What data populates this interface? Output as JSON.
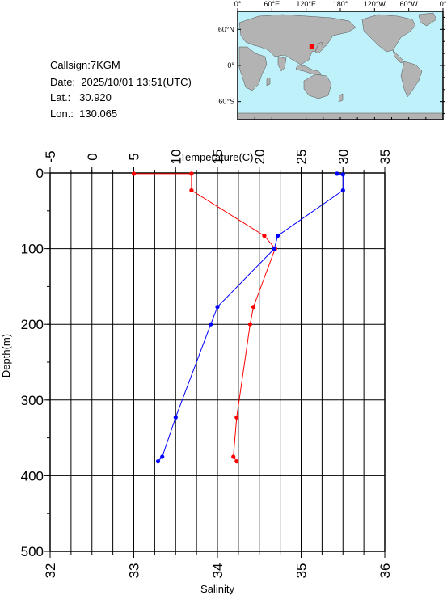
{
  "info": {
    "callsign": "Callsign:7KGM",
    "date": "Date:  2025/10/01 13:51(UTC)",
    "lat": "Lat.:   30.920",
    "lon": "Lon.:  130.065"
  },
  "map": {
    "top_labels": [
      "0°",
      "60°E",
      "120°E",
      "180°",
      "120°W",
      "60°W",
      "0°"
    ],
    "left_labels": [
      "60°N",
      "0°",
      "60°S"
    ],
    "marker_lat": 30.92,
    "marker_lon": 130.065,
    "colors": {
      "ocean": "#bff1fa",
      "land": "#b3b3b3",
      "marker": "#ff0000"
    }
  },
  "chart_data": {
    "type": "line",
    "ylabel": "Depth(m)",
    "xlabel_top": "Temperature(C)",
    "xlabel_bottom": "Salinity",
    "ylim": [
      0,
      500
    ],
    "yticks": [
      0,
      100,
      200,
      300,
      400,
      500
    ],
    "temperature_axis": {
      "range": [
        -5,
        35
      ],
      "ticks": [
        -5,
        0,
        5,
        10,
        15,
        20,
        25,
        30,
        35
      ]
    },
    "salinity_axis": {
      "range": [
        32,
        36
      ],
      "ticks": [
        32,
        33,
        34,
        35,
        36
      ]
    },
    "grid": true,
    "series": [
      {
        "color": "#ff0000",
        "axis": "salinity",
        "points": [
          {
            "x": 33.0,
            "depth": 1
          },
          {
            "x": 33.69,
            "depth": 1
          },
          {
            "x": 33.69,
            "depth": 23
          },
          {
            "x": 34.56,
            "depth": 83
          },
          {
            "x": 34.69,
            "depth": 100
          },
          {
            "x": 34.43,
            "depth": 177
          },
          {
            "x": 34.39,
            "depth": 200
          },
          {
            "x": 34.23,
            "depth": 323
          },
          {
            "x": 34.19,
            "depth": 375
          },
          {
            "x": 34.23,
            "depth": 381
          }
        ]
      },
      {
        "color": "#0000ff",
        "axis": "temperature",
        "points": [
          {
            "x": 29.3,
            "depth": 1
          },
          {
            "x": 30.0,
            "depth": 2
          },
          {
            "x": 30.0,
            "depth": 23
          },
          {
            "x": 22.2,
            "depth": 83
          },
          {
            "x": 21.8,
            "depth": 100
          },
          {
            "x": 15.0,
            "depth": 177
          },
          {
            "x": 14.2,
            "depth": 200
          },
          {
            "x": 10.0,
            "depth": 323
          },
          {
            "x": 8.4,
            "depth": 375
          },
          {
            "x": 7.9,
            "depth": 381
          }
        ]
      }
    ]
  }
}
